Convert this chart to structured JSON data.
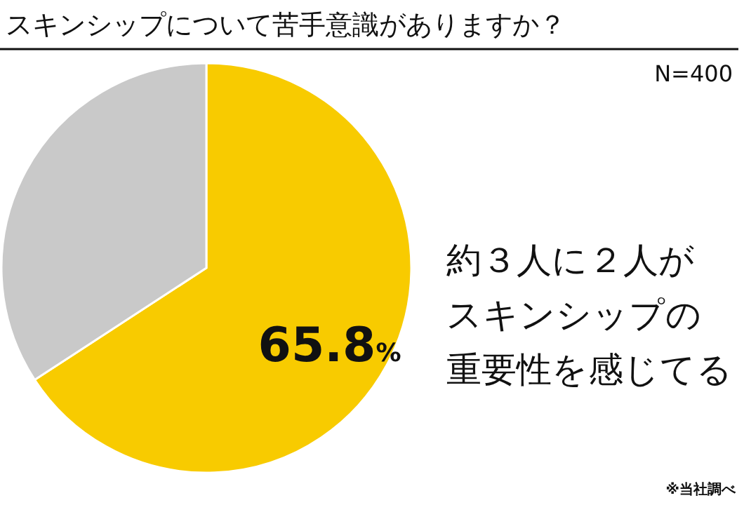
{
  "chart_data": {
    "type": "pie",
    "title": "スキンシップについて苦手意識がありますか？",
    "subtitle": "N=400",
    "categories": [
      null,
      null
    ],
    "values": [
      65.8,
      34.2
    ],
    "colors": [
      "#f8cb00",
      "#c9c9c9"
    ],
    "value_labels": [
      "65.8%",
      null
    ],
    "annotations": [
      "約３人に２人が",
      "スキンシップの",
      "重要性を感じてる",
      "※当社調べ"
    ]
  }
}
